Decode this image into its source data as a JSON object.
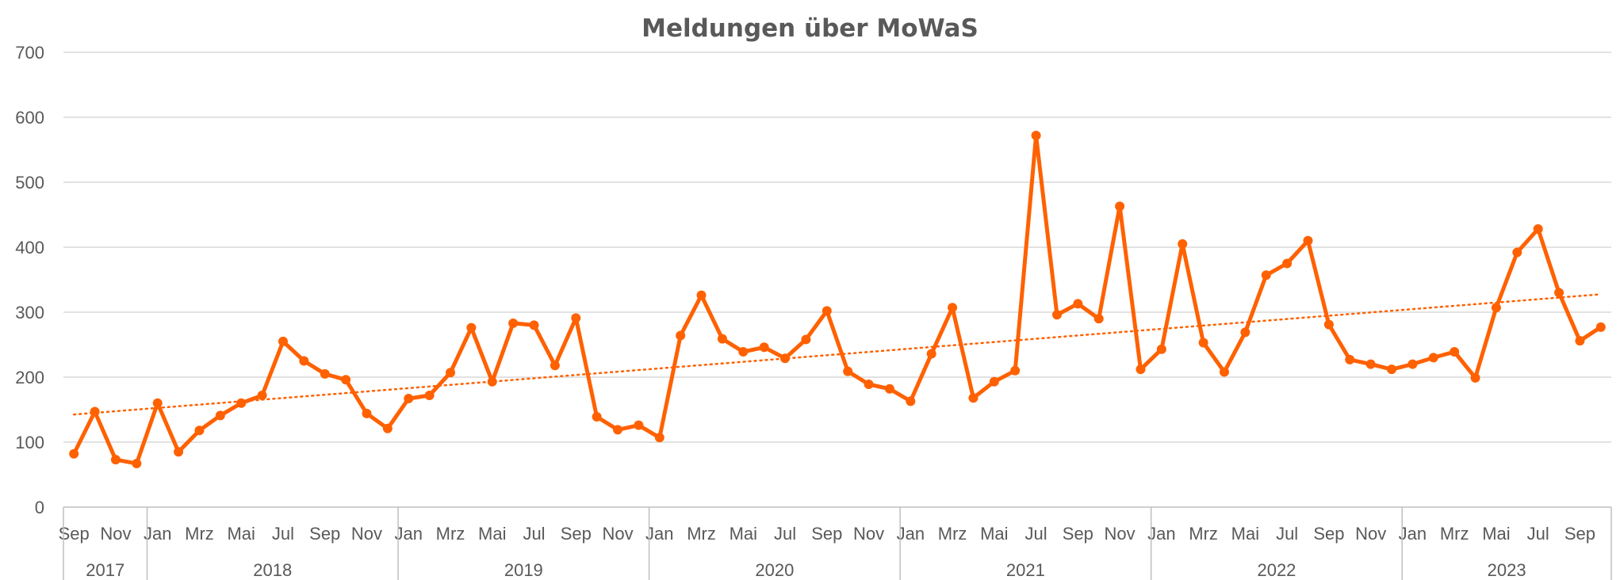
{
  "chart_data": {
    "type": "line",
    "title": "Meldungen über MoWaS",
    "xlabel": "",
    "ylabel": "",
    "ylim": [
      0,
      700
    ],
    "y_ticks": [
      "0",
      "100",
      "200",
      "300",
      "400",
      "500",
      "600",
      "700"
    ],
    "grid": true,
    "line_color": "#ff6100",
    "trend_color": "#ff6100",
    "x": [
      "Sep",
      "Okt",
      "Nov",
      "Dez",
      "Jan",
      "Feb",
      "Mrz",
      "Apr",
      "Mai",
      "Jun",
      "Jul",
      "Aug",
      "Sep",
      "Okt",
      "Nov",
      "Dez",
      "Jan",
      "Feb",
      "Mrz",
      "Apr",
      "Mai",
      "Jun",
      "Jul",
      "Aug",
      "Sep",
      "Okt",
      "Nov",
      "Dez",
      "Jan",
      "Feb",
      "Mrz",
      "Apr",
      "Mai",
      "Jun",
      "Jul",
      "Aug",
      "Sep",
      "Okt",
      "Nov",
      "Dez",
      "Jan",
      "Feb",
      "Mrz",
      "Apr",
      "Mai",
      "Jun",
      "Jul",
      "Aug",
      "Sep",
      "Okt",
      "Nov",
      "Dez",
      "Jan",
      "Feb",
      "Mrz",
      "Apr",
      "Mai",
      "Jun",
      "Jul",
      "Aug",
      "Sep",
      "Okt",
      "Nov",
      "Dez",
      "Jan",
      "Feb",
      "Mrz",
      "Apr",
      "Mai",
      "Jun",
      "Jul",
      "Aug",
      "Sep",
      "Okt"
    ],
    "x_tick_labels": [
      "Sep",
      "",
      "Nov",
      "",
      "Jan",
      "",
      "Mrz",
      "",
      "Mai",
      "",
      "Jul",
      "",
      "Sep",
      "",
      "Nov",
      "",
      "Jan",
      "",
      "Mrz",
      "",
      "Mai",
      "",
      "Jul",
      "",
      "Sep",
      "",
      "Nov",
      "",
      "Jan",
      "",
      "Mrz",
      "",
      "Mai",
      "",
      "Jul",
      "",
      "Sep",
      "",
      "Nov",
      "",
      "Jan",
      "",
      "Mrz",
      "",
      "Mai",
      "",
      "Jul",
      "",
      "Sep",
      "",
      "Nov",
      "",
      "Jan",
      "",
      "Mrz",
      "",
      "Mai",
      "",
      "Jul",
      "",
      "Sep",
      "",
      "Nov",
      "",
      "Jan",
      "",
      "Mrz",
      "",
      "Mai",
      "",
      "Jul",
      "",
      "Sep",
      ""
    ],
    "years": [
      {
        "label": "2017",
        "start": 0,
        "end": 3
      },
      {
        "label": "2018",
        "start": 4,
        "end": 15
      },
      {
        "label": "2019",
        "start": 16,
        "end": 27
      },
      {
        "label": "2020",
        "start": 28,
        "end": 39
      },
      {
        "label": "2021",
        "start": 40,
        "end": 51
      },
      {
        "label": "2022",
        "start": 52,
        "end": 63
      },
      {
        "label": "2023",
        "start": 64,
        "end": 73
      }
    ],
    "series": [
      {
        "values": [
          82,
          147,
          73,
          67,
          160,
          85,
          118,
          141,
          160,
          172,
          255,
          225,
          205,
          196,
          144,
          121,
          167,
          172,
          207,
          276,
          193,
          283,
          280,
          218,
          291,
          139,
          119,
          126,
          107,
          264,
          326,
          259,
          239,
          246,
          229,
          258,
          302,
          209,
          189,
          182,
          163,
          236,
          307,
          168,
          193,
          210,
          572,
          296,
          313,
          290,
          463,
          212,
          243,
          405,
          253,
          208,
          269,
          357,
          375,
          410,
          281,
          227,
          220,
          212,
          220,
          230,
          239,
          199,
          307,
          392,
          428,
          330,
          256,
          277
        ]
      }
    ],
    "trendline": {
      "type": "linear",
      "style": "dotted"
    }
  }
}
